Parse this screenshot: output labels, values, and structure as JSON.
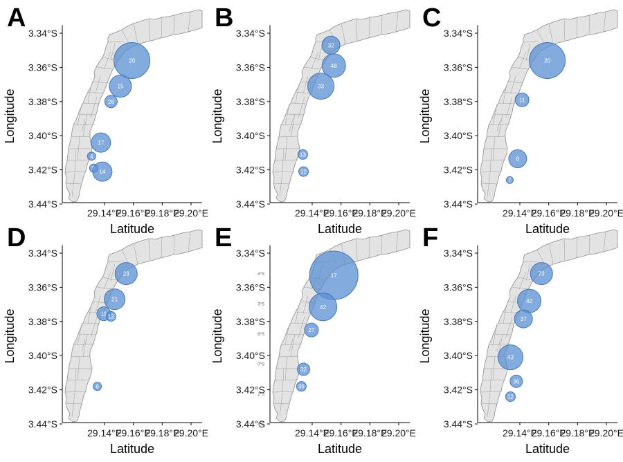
{
  "colors": {
    "bubble": "#5b8fd2",
    "bubble_stroke": "#4577b9",
    "land": "#e3e3e3",
    "land_stroke": "#8c8c8c"
  },
  "chart_data": [
    {
      "type": "bubble-map",
      "panel": "A",
      "xlabel": "Latitude",
      "ylabel": "Longitude",
      "xlim": [
        29.12,
        29.205
      ],
      "ylim": [
        -3.44,
        -3.333
      ],
      "xticks": [
        "29.14°E",
        "29.16°E",
        "29.18°E",
        "29.20°E"
      ],
      "yticks": [
        "3.34°S",
        "3.36°S",
        "3.38°S",
        "3.40°S",
        "3.42°S",
        "3.44°S"
      ],
      "points": [
        {
          "lon": 29.159,
          "lat": -3.356,
          "value": 20,
          "size": 26
        },
        {
          "lon": 29.151,
          "lat": -3.371,
          "value": 15,
          "size": 16
        },
        {
          "lon": 29.1445,
          "lat": -3.38,
          "value": 28,
          "size": 9
        },
        {
          "lon": 29.1375,
          "lat": -3.404,
          "value": 17,
          "size": 14
        },
        {
          "lon": 29.131,
          "lat": -3.412,
          "value": 4,
          "size": 6
        },
        {
          "lon": 29.1325,
          "lat": -3.419,
          "value": 9,
          "size": 6
        },
        {
          "lon": 29.1385,
          "lat": -3.421,
          "value": 14,
          "size": 14
        }
      ]
    },
    {
      "type": "bubble-map",
      "panel": "B",
      "xlabel": "Latitude",
      "ylabel": "Longitude",
      "xlim": [
        29.12,
        29.205
      ],
      "ylim": [
        -3.44,
        -3.333
      ],
      "xticks": [
        "29.14°E",
        "29.16°E",
        "29.18°E",
        "29.20°E"
      ],
      "yticks": [
        "3.34°S",
        "3.36°S",
        "3.38°S",
        "3.40°S",
        "3.42°S",
        "3.44°S"
      ],
      "points": [
        {
          "lon": 29.153,
          "lat": -3.347,
          "value": 32,
          "size": 13
        },
        {
          "lon": 29.155,
          "lat": -3.359,
          "value": 48,
          "size": 17
        },
        {
          "lon": 29.146,
          "lat": -3.371,
          "value": 33,
          "size": 19
        },
        {
          "lon": 29.1335,
          "lat": -3.411,
          "value": 13,
          "size": 7
        },
        {
          "lon": 29.134,
          "lat": -3.421,
          "value": 12,
          "size": 7
        }
      ]
    },
    {
      "type": "bubble-map",
      "panel": "C",
      "xlabel": "Latitude",
      "ylabel": "Longitude",
      "xlim": [
        29.12,
        29.205
      ],
      "ylim": [
        -3.44,
        -3.333
      ],
      "xticks": [
        "29.14°E",
        "29.16°E",
        "29.18°E",
        "29.20°E"
      ],
      "yticks": [
        "3.34°S",
        "3.36°S",
        "3.38°S",
        "3.40°S",
        "3.42°S",
        "3.44°S"
      ],
      "points": [
        {
          "lon": 29.159,
          "lat": -3.356,
          "value": 20,
          "size": 26
        },
        {
          "lon": 29.1415,
          "lat": -3.379,
          "value": 11,
          "size": 10
        },
        {
          "lon": 29.1385,
          "lat": -3.4135,
          "value": 8,
          "size": 13
        },
        {
          "lon": 29.133,
          "lat": -3.426,
          "value": 7,
          "size": 5
        }
      ]
    },
    {
      "type": "bubble-map",
      "panel": "D",
      "xlabel": "Latitude",
      "ylabel": "Longitude",
      "xlim": [
        29.12,
        29.205
      ],
      "ylim": [
        -3.44,
        -3.333
      ],
      "xticks": [
        "29.14°E",
        "29.16°E",
        "29.18°E",
        "29.20°E"
      ],
      "yticks": [
        "3.34°S",
        "3.36°S",
        "3.38°S",
        "3.40°S",
        "3.42°S",
        "3.44°S"
      ],
      "points": [
        {
          "lon": 29.155,
          "lat": -3.352,
          "value": 23,
          "size": 16
        },
        {
          "lon": 29.147,
          "lat": -3.367,
          "value": 21,
          "size": 15
        },
        {
          "lon": 29.1395,
          "lat": -3.3755,
          "value": 11,
          "size": 10
        },
        {
          "lon": 29.1445,
          "lat": -3.377,
          "value": 12,
          "size": 7
        },
        {
          "lon": 29.135,
          "lat": -3.418,
          "value": 6,
          "size": 6
        }
      ]
    },
    {
      "type": "bubble-map",
      "panel": "E",
      "xlabel": "Latitude",
      "ylabel": "Longitude",
      "xlim": [
        29.12,
        29.205
      ],
      "ylim": [
        -3.44,
        -3.333
      ],
      "xticks": [
        "29.14°E",
        "29.16°E",
        "29.18°E",
        "29.20°E"
      ],
      "yticks": [
        "3.34°S",
        "3.36°S",
        "3.38°S",
        "3.40°S",
        "3.42°S",
        "3.44°S"
      ],
      "inner_tick_labels": [
        "4°S",
        "3°S",
        "8°S",
        "0°S",
        "2°S",
        "4°S"
      ],
      "points": [
        {
          "lon": 29.155,
          "lat": -3.353,
          "value": 17,
          "size": 35
        },
        {
          "lon": 29.1475,
          "lat": -3.3715,
          "value": 42,
          "size": 20
        },
        {
          "lon": 29.1395,
          "lat": -3.385,
          "value": 27,
          "size": 10
        },
        {
          "lon": 29.134,
          "lat": -3.408,
          "value": 32,
          "size": 9
        },
        {
          "lon": 29.1325,
          "lat": -3.418,
          "value": 36,
          "size": 7
        }
      ]
    },
    {
      "type": "bubble-map",
      "panel": "F",
      "xlabel": "Latitude",
      "ylabel": "Longitude",
      "xlim": [
        29.12,
        29.205
      ],
      "ylim": [
        -3.44,
        -3.333
      ],
      "xticks": [
        "29.14°E",
        "29.16°E",
        "29.18°E",
        "29.20°E"
      ],
      "yticks": [
        "3.34°S",
        "3.36°S",
        "3.38°S",
        "3.40°S",
        "3.42°S",
        "3.44°S"
      ],
      "points": [
        {
          "lon": 29.155,
          "lat": -3.352,
          "value": 73,
          "size": 16
        },
        {
          "lon": 29.1465,
          "lat": -3.368,
          "value": 42,
          "size": 17
        },
        {
          "lon": 29.1425,
          "lat": -3.3785,
          "value": 37,
          "size": 13
        },
        {
          "lon": 29.1335,
          "lat": -3.401,
          "value": 43,
          "size": 18
        },
        {
          "lon": 29.1375,
          "lat": -3.415,
          "value": 36,
          "size": 9
        },
        {
          "lon": 29.1335,
          "lat": -3.424,
          "value": 12,
          "size": 7
        }
      ]
    }
  ]
}
